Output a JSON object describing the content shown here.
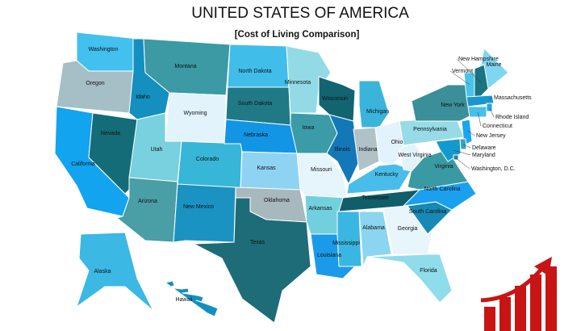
{
  "header": {
    "title": "UNITED STATES OF AMERICA",
    "subtitle": "[Cost of Living Comparison]"
  },
  "states": [
    {
      "label": "Washington",
      "color": "#42c0ee"
    },
    {
      "label": "Oregon",
      "color": "#a6bfc6"
    },
    {
      "label": "California",
      "color": "#12a4ee"
    },
    {
      "label": "Nevada",
      "color": "#146c78"
    },
    {
      "label": "Idaho",
      "color": "#138fc0"
    },
    {
      "label": "Montana",
      "color": "#3b9aa4"
    },
    {
      "label": "Wyoming",
      "color": "#e2f3fb"
    },
    {
      "label": "Utah",
      "color": "#79d0df"
    },
    {
      "label": "Arizona",
      "color": "#4a9ea5"
    },
    {
      "label": "Colorado",
      "color": "#38b6d8"
    },
    {
      "label": "New Mexico",
      "color": "#1b93c2"
    },
    {
      "label": "North Dakota",
      "color": "#40bde9"
    },
    {
      "label": "South Dakota",
      "color": "#1f7a86"
    },
    {
      "label": "Nebraska",
      "color": "#1395e6"
    },
    {
      "label": "Kansas",
      "color": "#8fd3f3"
    },
    {
      "label": "Oklahoma",
      "color": "#a8b9be"
    },
    {
      "label": "Texas",
      "color": "#1d6c77"
    },
    {
      "label": "Minnesota",
      "color": "#92dbe6"
    },
    {
      "label": "Iowa",
      "color": "#3b9ca7"
    },
    {
      "label": "Missouri",
      "color": "#e6f4fb"
    },
    {
      "label": "Arkansas",
      "color": "#72d0de"
    },
    {
      "label": "Louisiana",
      "color": "#1b9ae9"
    },
    {
      "label": "Wisconsin",
      "color": "#126471"
    },
    {
      "label": "Illinois",
      "color": "#1378b8"
    },
    {
      "label": "Michigan",
      "color": "#3bb4db"
    },
    {
      "label": "Indiana",
      "color": "#b0c2c7"
    },
    {
      "label": "Ohio",
      "color": "#e3f3fb"
    },
    {
      "label": "Kentucky",
      "color": "#49bde9"
    },
    {
      "label": "Tennessee",
      "color": "#0f5e6a"
    },
    {
      "label": "Mississippi",
      "color": "#3ab6e2"
    },
    {
      "label": "Alabama",
      "color": "#8bd5f0"
    },
    {
      "label": "Georgia",
      "color": "#e8f5fb"
    },
    {
      "label": "Florida",
      "color": "#8fdcea"
    },
    {
      "label": "South Carolina",
      "color": "#1889b5"
    },
    {
      "label": "North Carolina",
      "color": "#1aa0ee"
    },
    {
      "label": "Virginia",
      "color": "#3a9aa3"
    },
    {
      "label": "West Virginia",
      "color": "#e3f3fb"
    },
    {
      "label": "Pennsylvania",
      "color": "#97dbe6"
    },
    {
      "label": "New York",
      "color": "#3a8f99"
    },
    {
      "label": "Maine",
      "color": "#7fd6f2"
    },
    {
      "label": "New Hampshire",
      "color": "#1a7481"
    },
    {
      "label": "Vermont",
      "color": "#48c3ec"
    },
    {
      "label": "Massachusetts",
      "color": "#1896d0"
    },
    {
      "label": "Rhode Island",
      "color": "#2aa6e0"
    },
    {
      "label": "Connecticut",
      "color": "#45c0ea"
    },
    {
      "label": "New Jersey",
      "color": "#1aa5ef"
    },
    {
      "label": "Delaware",
      "color": "#39a0c0"
    },
    {
      "label": "Maryland",
      "color": "#129ad0"
    },
    {
      "label": "Washington, D.C.",
      "color": "#2a7f8e"
    },
    {
      "label": "Alaska",
      "color": "#3bb8e4"
    },
    {
      "label": "Hawaii",
      "color": "#138fbf"
    }
  ]
}
